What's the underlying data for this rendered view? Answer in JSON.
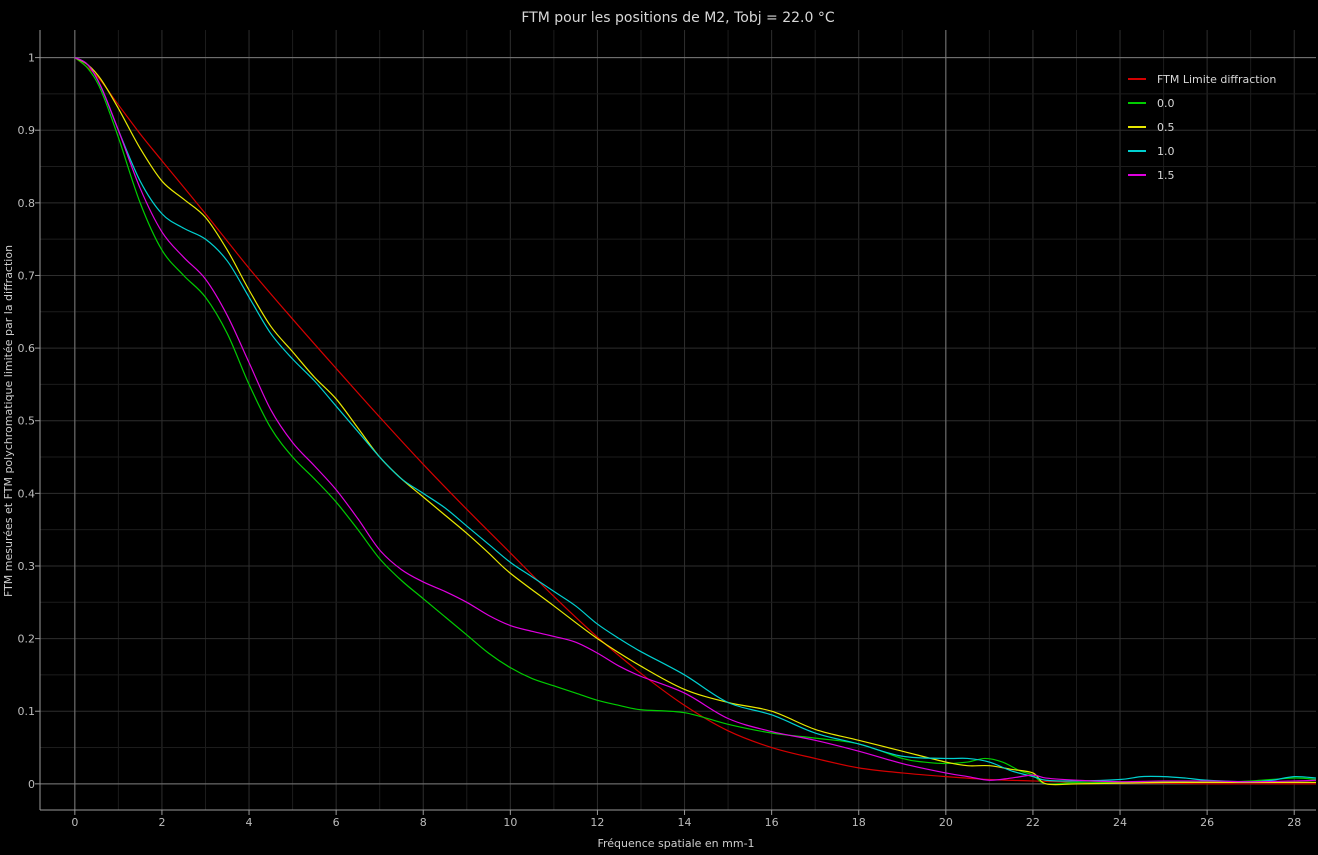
{
  "chart_data": {
    "type": "line",
    "title": "FTM pour les positions de M2, Tobj = 22.0 °C",
    "xlabel": "Fréquence spatiale en mm-1",
    "ylabel": "FTM mesurées et FTM polychromatique limitée par la diffraction",
    "xlim": [
      -0.8,
      28.5
    ],
    "ylim": [
      -0.036,
      1.038
    ],
    "xticks": [
      0,
      2,
      4,
      6,
      8,
      10,
      12,
      14,
      16,
      18,
      20,
      22,
      24,
      26,
      28
    ],
    "yticks": [
      0,
      0.1,
      0.2,
      0.3,
      0.4,
      0.5,
      0.6,
      0.7,
      0.8,
      0.9,
      1
    ],
    "ytick_labels": [
      "0",
      "0.1",
      "0.2",
      "0.3",
      "0.4",
      "0.5",
      "0.6",
      "0.7",
      "0.8",
      "0.9",
      "1"
    ],
    "grid": true,
    "highlight_vlines": [
      0,
      20
    ],
    "highlight_hlines": [
      0,
      1
    ],
    "legend_position": "top-right",
    "series": [
      {
        "name": "FTM Limite diffraction",
        "color": "#d40000",
        "x": [
          0,
          0.5,
          1,
          1.5,
          2,
          3,
          4,
          5,
          6,
          7,
          8,
          9,
          10,
          11,
          12,
          13,
          14,
          15,
          16,
          17,
          18,
          19,
          20,
          21,
          22,
          23,
          24,
          25,
          26,
          27,
          28,
          28.5
        ],
        "y": [
          1.0,
          0.975,
          0.935,
          0.895,
          0.858,
          0.785,
          0.71,
          0.64,
          0.572,
          0.505,
          0.44,
          0.378,
          0.318,
          0.258,
          0.202,
          0.152,
          0.108,
          0.073,
          0.05,
          0.035,
          0.022,
          0.015,
          0.01,
          0.006,
          0.004,
          0.002,
          0.001,
          0.001,
          0.0,
          0.0,
          0.0,
          0.0
        ]
      },
      {
        "name": "0.0",
        "color": "#00cc00",
        "x": [
          0,
          0.3,
          0.6,
          1,
          1.5,
          2,
          2.5,
          3,
          3.5,
          4,
          4.5,
          5,
          5.5,
          6,
          6.5,
          7,
          7.5,
          8,
          8.5,
          9,
          9.5,
          10,
          10.5,
          11,
          11.5,
          12,
          12.5,
          13,
          14,
          15,
          16,
          17,
          18,
          19,
          19.5,
          20,
          20.5,
          20.9,
          21.3,
          21.7,
          22,
          22.3,
          23,
          24,
          25,
          26,
          27,
          28,
          28.5
        ],
        "y": [
          1.0,
          0.985,
          0.955,
          0.89,
          0.8,
          0.735,
          0.7,
          0.67,
          0.62,
          0.55,
          0.49,
          0.45,
          0.42,
          0.388,
          0.35,
          0.31,
          0.28,
          0.255,
          0.23,
          0.205,
          0.18,
          0.16,
          0.145,
          0.135,
          0.125,
          0.115,
          0.108,
          0.102,
          0.098,
          0.082,
          0.07,
          0.063,
          0.055,
          0.035,
          0.03,
          0.028,
          0.03,
          0.035,
          0.03,
          0.018,
          0.012,
          0.0,
          0.002,
          0.002,
          0.003,
          0.002,
          0.004,
          0.008,
          0.006
        ]
      },
      {
        "name": "0.5",
        "color": "#e8e800",
        "x": [
          0,
          0.3,
          0.6,
          1,
          1.5,
          2,
          2.5,
          3,
          3.5,
          4,
          4.5,
          5,
          5.5,
          6,
          6.5,
          7,
          7.5,
          8,
          8.5,
          9,
          9.5,
          10,
          11,
          12,
          13,
          14,
          15,
          16,
          17,
          18,
          19,
          20,
          20.5,
          21,
          21.5,
          22,
          22.3,
          23,
          24,
          25,
          26,
          27,
          28,
          28.5
        ],
        "y": [
          1.0,
          0.99,
          0.97,
          0.93,
          0.875,
          0.83,
          0.805,
          0.78,
          0.735,
          0.68,
          0.63,
          0.595,
          0.56,
          0.53,
          0.49,
          0.45,
          0.42,
          0.395,
          0.37,
          0.345,
          0.318,
          0.29,
          0.245,
          0.2,
          0.162,
          0.13,
          0.112,
          0.1,
          0.075,
          0.06,
          0.045,
          0.03,
          0.025,
          0.025,
          0.02,
          0.015,
          0.0,
          0.0,
          0.001,
          0.002,
          0.002,
          0.002,
          0.002,
          0.002
        ]
      },
      {
        "name": "1.0",
        "color": "#00d0d0",
        "x": [
          0,
          0.3,
          0.6,
          1,
          1.5,
          2,
          2.5,
          3,
          3.5,
          4,
          4.5,
          5,
          5.5,
          6,
          6.5,
          7,
          7.5,
          8,
          8.5,
          9,
          9.5,
          10,
          10.5,
          11,
          11.5,
          12,
          12.5,
          13,
          14,
          15,
          16,
          17,
          18,
          19,
          20,
          20.5,
          21,
          21.5,
          22,
          22.3,
          23,
          24,
          24.5,
          25,
          25.5,
          26,
          27,
          27.5,
          28,
          28.5
        ],
        "y": [
          1.0,
          0.99,
          0.96,
          0.9,
          0.83,
          0.785,
          0.765,
          0.75,
          0.72,
          0.67,
          0.62,
          0.585,
          0.555,
          0.52,
          0.485,
          0.45,
          0.42,
          0.4,
          0.38,
          0.355,
          0.33,
          0.305,
          0.285,
          0.265,
          0.245,
          0.22,
          0.2,
          0.182,
          0.15,
          0.112,
          0.095,
          0.07,
          0.055,
          0.038,
          0.035,
          0.035,
          0.03,
          0.018,
          0.01,
          0.005,
          0.004,
          0.006,
          0.01,
          0.01,
          0.008,
          0.005,
          0.003,
          0.005,
          0.01,
          0.008
        ]
      },
      {
        "name": "1.5",
        "color": "#e000e0",
        "x": [
          0,
          0.3,
          0.6,
          1,
          1.5,
          2,
          2.5,
          3,
          3.5,
          4,
          4.5,
          5,
          5.5,
          6,
          6.5,
          7,
          7.5,
          8,
          8.5,
          9,
          9.5,
          10,
          10.5,
          11,
          11.5,
          12,
          12.5,
          13,
          14,
          15,
          16,
          17,
          18,
          19,
          20,
          20.5,
          21,
          21.5,
          22,
          22.3,
          23,
          24,
          25,
          26,
          27,
          28,
          28.5
        ],
        "y": [
          1.0,
          0.99,
          0.96,
          0.9,
          0.82,
          0.76,
          0.725,
          0.695,
          0.645,
          0.58,
          0.515,
          0.47,
          0.438,
          0.405,
          0.365,
          0.322,
          0.295,
          0.278,
          0.265,
          0.25,
          0.232,
          0.218,
          0.21,
          0.203,
          0.195,
          0.18,
          0.162,
          0.148,
          0.125,
          0.09,
          0.072,
          0.06,
          0.045,
          0.028,
          0.015,
          0.01,
          0.005,
          0.008,
          0.012,
          0.008,
          0.005,
          0.003,
          0.004,
          0.004,
          0.003,
          0.004,
          0.005
        ]
      }
    ]
  }
}
